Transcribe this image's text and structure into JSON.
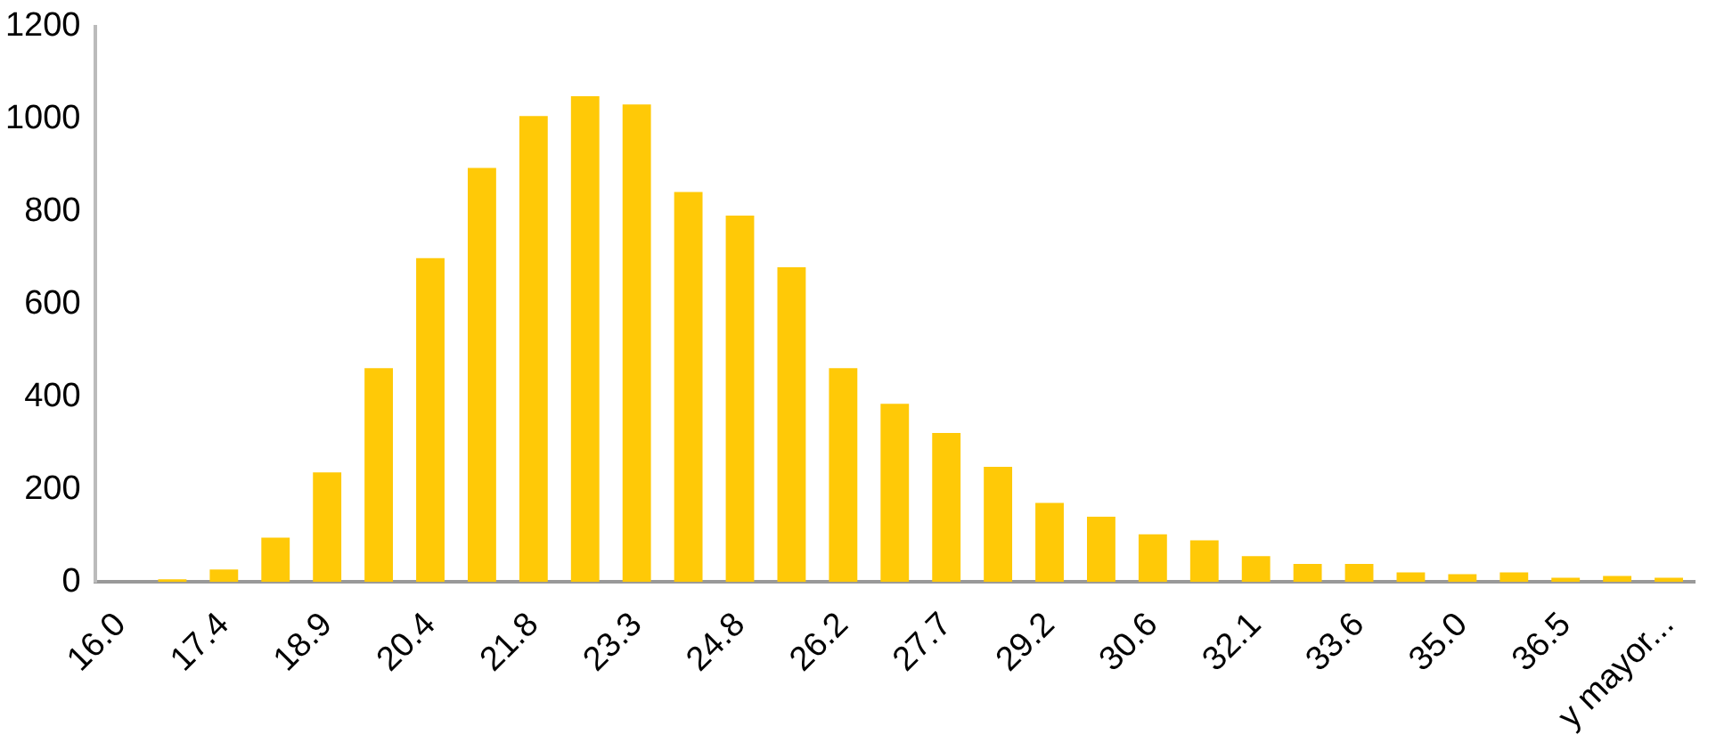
{
  "chart_data": {
    "type": "bar",
    "categories": [
      "16.0",
      null,
      "17.4",
      null,
      "18.9",
      null,
      "20.4",
      null,
      "21.8",
      null,
      "23.3",
      null,
      "24.8",
      null,
      "26.2",
      null,
      "27.7",
      null,
      "29.2",
      null,
      "30.6",
      null,
      "32.1",
      null,
      "33.6",
      null,
      "35.0",
      null,
      "36.5",
      null,
      "y mayor..."
    ],
    "values": [
      0,
      6,
      27,
      96,
      237,
      462,
      700,
      895,
      1007,
      1050,
      1032,
      843,
      792,
      680,
      462,
      385,
      322,
      249,
      171,
      141,
      103,
      90,
      56,
      39,
      39,
      21,
      17,
      21,
      9,
      13,
      9
    ],
    "color": "#ffc907",
    "ylim": [
      0,
      1200
    ],
    "yticks": [
      0,
      200,
      400,
      600,
      800,
      1000,
      1200
    ],
    "grid": false,
    "legend": false
  }
}
